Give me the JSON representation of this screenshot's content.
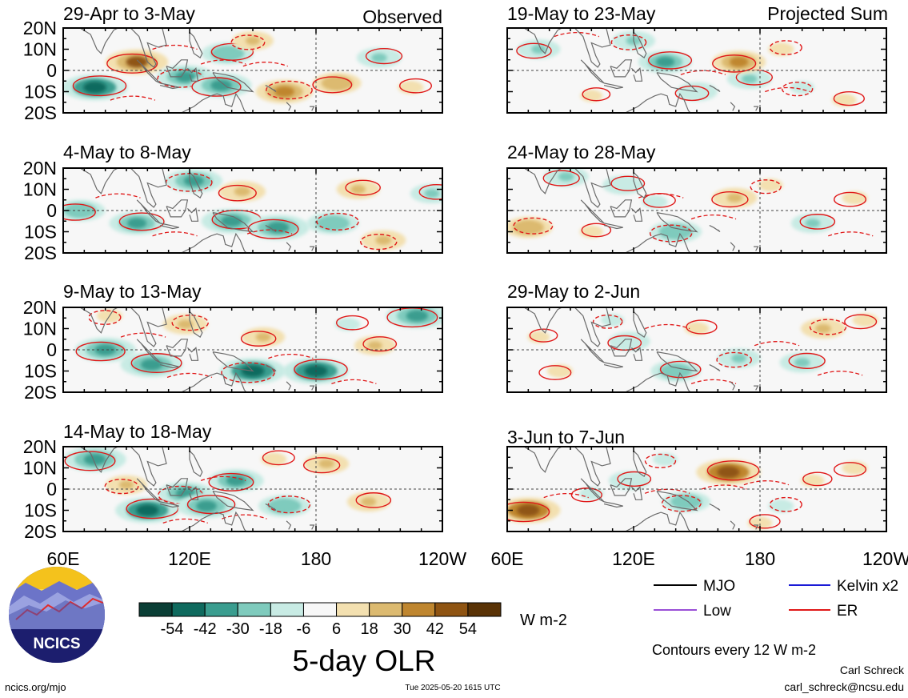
{
  "column_labels": {
    "observed": "Observed",
    "projected": "Projected Sum"
  },
  "latitude_ticks": [
    "20N",
    "10N",
    "0",
    "10S",
    "20S"
  ],
  "longitude_ticks": [
    "60E",
    "120E",
    "180",
    "120W"
  ],
  "panels": [
    {
      "period": "29-Apr to 3-May",
      "column": "observed"
    },
    {
      "period": "4-May to 8-May",
      "column": "observed"
    },
    {
      "period": "9-May to 13-May",
      "column": "observed"
    },
    {
      "period": "14-May to 18-May",
      "column": "observed"
    },
    {
      "period": "19-May to 23-May",
      "column": "projected"
    },
    {
      "period": "24-May to 28-May",
      "column": "projected"
    },
    {
      "period": "29-May to 2-Jun",
      "column": "projected"
    },
    {
      "period": "3-Jun to 7-Jun",
      "column": "projected"
    }
  ],
  "colorbar": {
    "labels": [
      "-54",
      "-42",
      "-30",
      "-18",
      "-6",
      "6",
      "18",
      "30",
      "42",
      "54"
    ],
    "colors": [
      "#0b3f36",
      "#0f6a5e",
      "#3a9d8f",
      "#7fcbbd",
      "#c8ebe4",
      "#f7f7f7",
      "#f3e0b0",
      "#dcba70",
      "#bf862f",
      "#8f5412",
      "#5a3306"
    ],
    "units": "W m-2"
  },
  "title": "5-day OLR",
  "legend": [
    {
      "label": "MJO",
      "color": "#000000"
    },
    {
      "label": "Kelvin x2",
      "color": "#1a1ad6"
    },
    {
      "label": "Low",
      "color": "#9a4fd6"
    },
    {
      "label": "ER",
      "color": "#e01818"
    }
  ],
  "contour_note": "Contours every 12 W m-2",
  "author": "Carl Schreck",
  "email": "carl_schreck@ncsu.edu",
  "website": "ncics.org/mjo",
  "timestamp": "Tue 2025-05-20 1615 UTC",
  "logo_text": "NCICS",
  "chart_data": {
    "type": "heatmap",
    "variable": "5-day OLR anomaly (W m-2)",
    "x_axis": {
      "ticks": [
        "60E",
        "120E",
        "180",
        "120W"
      ],
      "range_deg_east": [
        60,
        240
      ]
    },
    "y_axis": {
      "ticks": [
        "20N",
        "10N",
        "0",
        "10S",
        "20S"
      ],
      "range_deg_lat": [
        -20,
        20
      ]
    },
    "levels": [
      -54,
      -42,
      -30,
      -18,
      -6,
      6,
      18,
      30,
      42,
      54
    ],
    "contour_interval": 12,
    "anomalies": [
      {
        "panel": 0,
        "lon": 95,
        "lat": 4,
        "v": 42
      },
      {
        "panel": 0,
        "lon": 75,
        "lat": -8,
        "v": -46
      },
      {
        "panel": 0,
        "lon": 118,
        "lat": -3,
        "v": -36
      },
      {
        "panel": 0,
        "lon": 138,
        "lat": 8,
        "v": -30
      },
      {
        "panel": 0,
        "lon": 135,
        "lat": -7,
        "v": -40
      },
      {
        "panel": 0,
        "lon": 165,
        "lat": -10,
        "v": 36
      },
      {
        "panel": 0,
        "lon": 190,
        "lat": -6,
        "v": 26
      },
      {
        "panel": 0,
        "lon": 210,
        "lat": 6,
        "v": -22
      },
      {
        "panel": 0,
        "lon": 150,
        "lat": 14,
        "v": 18
      },
      {
        "panel": 0,
        "lon": 225,
        "lat": -8,
        "v": 16
      },
      {
        "panel": 1,
        "lon": 68,
        "lat": 0,
        "v": -28
      },
      {
        "panel": 1,
        "lon": 95,
        "lat": -6,
        "v": -34
      },
      {
        "panel": 1,
        "lon": 122,
        "lat": 14,
        "v": -36
      },
      {
        "panel": 1,
        "lon": 140,
        "lat": -5,
        "v": -40
      },
      {
        "panel": 1,
        "lon": 162,
        "lat": -8,
        "v": -42
      },
      {
        "panel": 1,
        "lon": 188,
        "lat": -6,
        "v": -30
      },
      {
        "panel": 1,
        "lon": 145,
        "lat": 9,
        "v": 24
      },
      {
        "panel": 1,
        "lon": 200,
        "lat": 10,
        "v": 20
      },
      {
        "panel": 1,
        "lon": 212,
        "lat": -14,
        "v": 22
      },
      {
        "panel": 1,
        "lon": 235,
        "lat": 8,
        "v": -20
      },
      {
        "panel": 2,
        "lon": 80,
        "lat": 0,
        "v": -40
      },
      {
        "panel": 2,
        "lon": 102,
        "lat": -7,
        "v": -42
      },
      {
        "panel": 2,
        "lon": 150,
        "lat": -10,
        "v": -46
      },
      {
        "panel": 2,
        "lon": 180,
        "lat": -10,
        "v": -46
      },
      {
        "panel": 2,
        "lon": 228,
        "lat": 16,
        "v": -42
      },
      {
        "panel": 2,
        "lon": 118,
        "lat": 12,
        "v": 22
      },
      {
        "panel": 2,
        "lon": 155,
        "lat": 6,
        "v": 20
      },
      {
        "panel": 2,
        "lon": 208,
        "lat": 2,
        "v": 18
      },
      {
        "panel": 2,
        "lon": 82,
        "lat": 16,
        "v": 16
      },
      {
        "panel": 2,
        "lon": 195,
        "lat": 12,
        "v": -16
      },
      {
        "panel": 3,
        "lon": 75,
        "lat": 14,
        "v": -42
      },
      {
        "panel": 3,
        "lon": 100,
        "lat": -10,
        "v": -44
      },
      {
        "panel": 3,
        "lon": 118,
        "lat": -2,
        "v": -34
      },
      {
        "panel": 3,
        "lon": 128,
        "lat": -8,
        "v": -38
      },
      {
        "panel": 3,
        "lon": 142,
        "lat": 4,
        "v": -34
      },
      {
        "panel": 3,
        "lon": 165,
        "lat": -8,
        "v": -30
      },
      {
        "panel": 3,
        "lon": 185,
        "lat": 12,
        "v": 22
      },
      {
        "panel": 3,
        "lon": 205,
        "lat": -6,
        "v": 20
      },
      {
        "panel": 3,
        "lon": 90,
        "lat": 2,
        "v": 18
      },
      {
        "panel": 3,
        "lon": 160,
        "lat": 14,
        "v": 16
      },
      {
        "panel": 4,
        "lon": 75,
        "lat": 10,
        "v": -20
      },
      {
        "panel": 4,
        "lon": 135,
        "lat": 4,
        "v": -32
      },
      {
        "panel": 4,
        "lon": 120,
        "lat": 14,
        "v": -20
      },
      {
        "panel": 4,
        "lon": 175,
        "lat": -4,
        "v": -22
      },
      {
        "panel": 4,
        "lon": 170,
        "lat": 4,
        "v": 32
      },
      {
        "panel": 4,
        "lon": 190,
        "lat": 10,
        "v": 16
      },
      {
        "panel": 4,
        "lon": 150,
        "lat": -10,
        "v": -18
      },
      {
        "panel": 4,
        "lon": 220,
        "lat": -14,
        "v": 14
      },
      {
        "panel": 4,
        "lon": 200,
        "lat": -8,
        "v": -14
      },
      {
        "panel": 4,
        "lon": 100,
        "lat": -12,
        "v": 10
      },
      {
        "panel": 5,
        "lon": 88,
        "lat": 16,
        "v": -22
      },
      {
        "panel": 5,
        "lon": 115,
        "lat": 12,
        "v": -18
      },
      {
        "panel": 5,
        "lon": 140,
        "lat": -10,
        "v": -30
      },
      {
        "panel": 5,
        "lon": 205,
        "lat": -6,
        "v": -20
      },
      {
        "panel": 5,
        "lon": 168,
        "lat": 6,
        "v": 22
      },
      {
        "panel": 5,
        "lon": 70,
        "lat": -8,
        "v": 26
      },
      {
        "panel": 5,
        "lon": 225,
        "lat": 6,
        "v": 16
      },
      {
        "panel": 5,
        "lon": 130,
        "lat": 4,
        "v": -16
      },
      {
        "panel": 5,
        "lon": 185,
        "lat": 12,
        "v": 14
      },
      {
        "panel": 5,
        "lon": 100,
        "lat": -10,
        "v": 12
      },
      {
        "panel": 6,
        "lon": 118,
        "lat": 4,
        "v": -18
      },
      {
        "panel": 6,
        "lon": 140,
        "lat": -10,
        "v": -28
      },
      {
        "panel": 6,
        "lon": 170,
        "lat": -4,
        "v": -20
      },
      {
        "panel": 6,
        "lon": 200,
        "lat": -6,
        "v": -22
      },
      {
        "panel": 6,
        "lon": 85,
        "lat": -10,
        "v": 16
      },
      {
        "panel": 6,
        "lon": 210,
        "lat": 10,
        "v": 22
      },
      {
        "panel": 6,
        "lon": 230,
        "lat": 14,
        "v": 16
      },
      {
        "panel": 6,
        "lon": 150,
        "lat": 10,
        "v": 14
      },
      {
        "panel": 6,
        "lon": 110,
        "lat": 14,
        "v": -12
      },
      {
        "panel": 6,
        "lon": 75,
        "lat": 6,
        "v": 10
      },
      {
        "panel": 7,
        "lon": 70,
        "lat": -10,
        "v": 44
      },
      {
        "panel": 7,
        "lon": 165,
        "lat": 8,
        "v": 44
      },
      {
        "panel": 7,
        "lon": 145,
        "lat": -6,
        "v": -26
      },
      {
        "panel": 7,
        "lon": 118,
        "lat": 4,
        "v": -18
      },
      {
        "panel": 7,
        "lon": 100,
        "lat": -2,
        "v": -14
      },
      {
        "panel": 7,
        "lon": 190,
        "lat": -8,
        "v": -16
      },
      {
        "panel": 7,
        "lon": 225,
        "lat": 10,
        "v": 16
      },
      {
        "panel": 7,
        "lon": 205,
        "lat": 4,
        "v": 12
      },
      {
        "panel": 7,
        "lon": 135,
        "lat": 14,
        "v": -14
      },
      {
        "panel": 7,
        "lon": 180,
        "lat": -16,
        "v": 14
      }
    ]
  }
}
